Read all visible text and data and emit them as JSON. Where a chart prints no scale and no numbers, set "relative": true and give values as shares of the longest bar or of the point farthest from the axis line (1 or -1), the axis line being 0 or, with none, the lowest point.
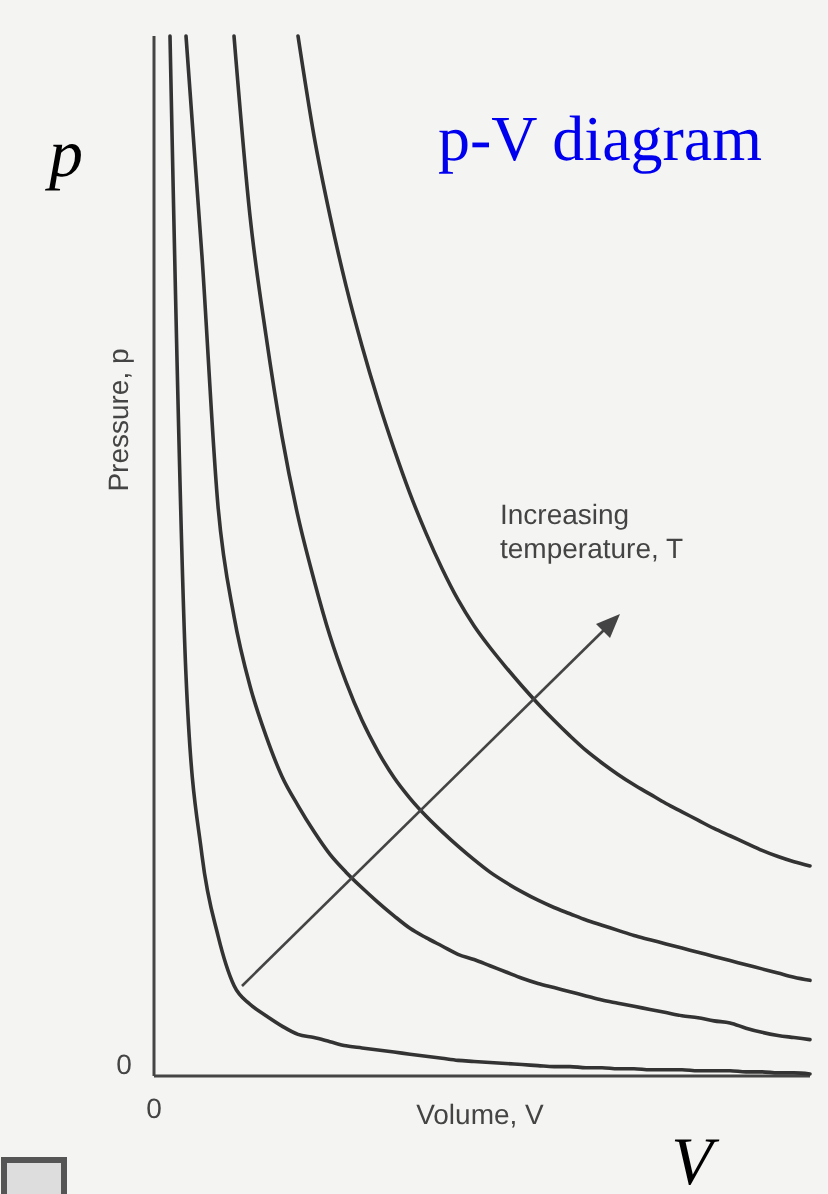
{
  "chart_data": {
    "type": "line",
    "title": "p-V diagram",
    "xlabel": "Volume, V",
    "ylabel": "Pressure, p",
    "relative": true,
    "categories": [
      null,
      null,
      null,
      null,
      null,
      null,
      null,
      null,
      null,
      null,
      null,
      null,
      null,
      null,
      null,
      null,
      null,
      null,
      null,
      null,
      null,
      null,
      null,
      null,
      null,
      null,
      null,
      null,
      null,
      null,
      null,
      null,
      null,
      null,
      null,
      null,
      null,
      null,
      null,
      null,
      null,
      null
    ],
    "annotations": [
      "Increasing temperature, T",
      "0",
      "0",
      "p",
      "V"
    ],
    "series": [
      {
        "color": "#333333",
        "values": [
          null,
          1,
          0.385,
          0.212,
          0.135,
          0.087,
          0.069,
          0.058,
          0.048,
          0.04,
          0.037,
          0.033,
          0.029,
          0.027,
          0.025,
          0.023,
          0.021,
          0.019,
          0.017,
          0.015,
          0.014,
          0.013,
          0.012,
          0.011,
          0.01,
          0.009,
          0.009,
          0.008,
          0.008,
          0.007,
          0.007,
          0.006,
          0.006,
          0.006,
          0.005,
          0.005,
          0.005,
          0.004,
          0.004,
          0.003,
          0.003,
          0.002
        ]
      },
      {
        "color": "#333333",
        "values": [
          null,
          null,
          1,
          0.788,
          0.548,
          0.442,
          0.375,
          0.327,
          0.288,
          0.26,
          0.235,
          0.213,
          0.196,
          0.181,
          0.167,
          0.154,
          0.142,
          0.133,
          0.125,
          0.117,
          0.112,
          0.106,
          0.1,
          0.094,
          0.089,
          0.085,
          0.081,
          0.077,
          0.073,
          0.07,
          0.067,
          0.064,
          0.061,
          0.058,
          0.056,
          0.053,
          0.051,
          0.046,
          0.042,
          0.039,
          0.037,
          0.035
        ]
      },
      {
        "color": "#333333",
        "values": [
          null,
          null,
          null,
          null,
          null,
          1,
          0.827,
          0.712,
          0.615,
          0.538,
          0.477,
          0.423,
          0.379,
          0.342,
          0.312,
          0.287,
          0.267,
          0.25,
          0.235,
          0.221,
          0.208,
          0.196,
          0.186,
          0.177,
          0.169,
          0.162,
          0.156,
          0.15,
          0.145,
          0.14,
          0.135,
          0.131,
          0.127,
          0.123,
          0.119,
          0.115,
          0.111,
          0.107,
          0.103,
          0.099,
          0.095,
          0.092
        ]
      },
      {
        "color": "#333333",
        "values": [
          null,
          null,
          null,
          null,
          null,
          null,
          null,
          null,
          null,
          1,
          0.904,
          0.827,
          0.76,
          0.702,
          0.65,
          0.603,
          0.56,
          0.522,
          0.488,
          0.458,
          0.433,
          0.412,
          0.393,
          0.375,
          0.358,
          0.342,
          0.327,
          0.313,
          0.301,
          0.29,
          0.28,
          0.271,
          0.262,
          0.254,
          0.246,
          0.238,
          0.231,
          0.224,
          0.217,
          0.211,
          0.206,
          0.202
        ]
      }
    ]
  }
}
